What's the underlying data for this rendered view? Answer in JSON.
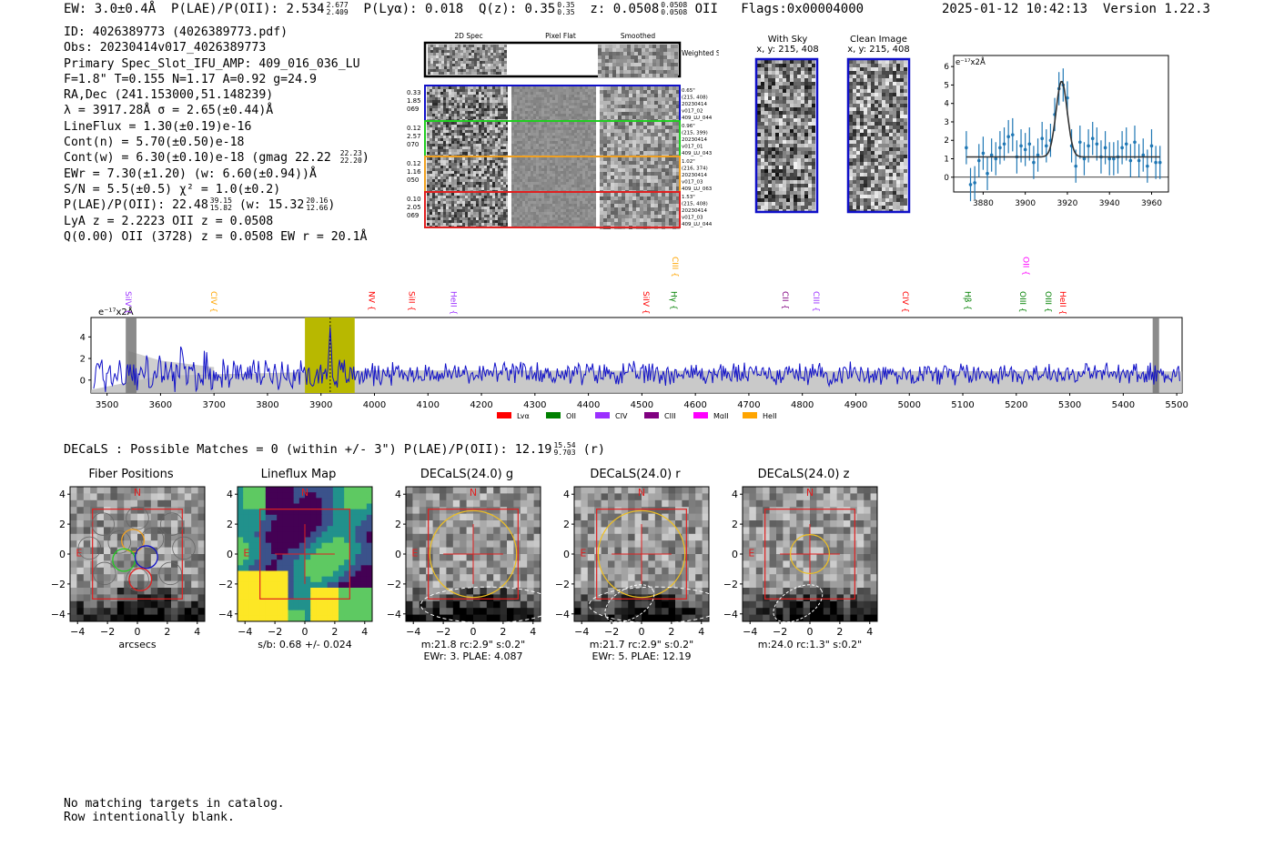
{
  "header": {
    "ew": "EW: 3.0±0.4Å",
    "plae_label": "P(LAE)/P(OII): 2.534",
    "plae_hi": "2.677",
    "plae_lo": "2.409",
    "plya": "P(Lyα): 0.018",
    "q_label": "Q(z): 0.35",
    "q_hi": "0.35",
    "q_lo": "0.35",
    "z_label": "z: 0.0508",
    "z_hi": "0.0508",
    "z_lo": "0.0508",
    "line": "OII",
    "flags": "Flags:0x00004000",
    "timestamp": "2025-01-12 10:42:13",
    "version": "Version 1.22.3"
  },
  "info": {
    "id": "ID: 4026389773 (4026389773.pdf)",
    "obs": "Obs: 20230414v017_4026389773",
    "slot": "Primary Spec_Slot_IFU_AMP: 409_016_036_LU",
    "fwhm": "F=1.8\"  T=0.155  N=1.17  A=0.92  g=24.9",
    "radec": "RA,Dec (241.153000,51.148239)",
    "lambda": "λ = 3917.28Å  σ = 2.65(±0.44)Å",
    "lineflux": "LineFlux = 1.30(±0.19)e-16",
    "contn": "Cont(n) = 5.70(±0.50)e-18",
    "contw": "Cont(w) = 6.30(±0.10)e-18 (gmag 22.22",
    "contw_hi": "22.23",
    "contw_lo": "22.20",
    "contw_end": ")",
    "ewr": "EWr = 7.30(±1.20) (w: 6.60(±0.94))Å",
    "sn": "S/N = 5.5(±0.5)  χ² = 1.0(±0.2)",
    "plae": "P(LAE)/P(OII): 22.48",
    "plae_hi": "39.15",
    "plae_lo": "15.82",
    "plae_w": "(w: 15.32",
    "plae_w_hi": "20.16",
    "plae_w_lo": "12.66",
    "plae_end": ")",
    "lya": "LyA z = 2.2223  OII z = 0.0508",
    "q": "Q(0.00) OII (3728) z = 0.0508  EW r = 20.1Å"
  },
  "cutouts": {
    "col_titles": [
      "2D Spec",
      "Pixel Flat",
      "Smoothed"
    ],
    "weighted_label": "Weighted Sum",
    "rows": [
      {
        "left": [
          "0.33",
          "1.85",
          "069"
        ],
        "right": [
          "0.65\"",
          "(215, 408)",
          "20230414",
          "v017_02",
          "409_LU_044"
        ],
        "color": "#1010c8"
      },
      {
        "left": [
          "0.12",
          "2.57",
          "070"
        ],
        "right": [
          "0.96\"",
          "(215, 399)",
          "20230414",
          "v017_01",
          "409_LU_043"
        ],
        "color": "#22cc22"
      },
      {
        "left": [
          "0.12",
          "1.16",
          "050"
        ],
        "right": [
          "1.02\"",
          "(216, 374)",
          "20230414",
          "v017_03",
          "409_LU_063"
        ],
        "color": "#f0a020"
      },
      {
        "left": [
          "0.10",
          "2.05",
          "069"
        ],
        "right": [
          "1.53\"",
          "(215, 408)",
          "20230414",
          "v017_03",
          "409_LU_044"
        ],
        "color": "#e02020"
      }
    ],
    "with_sky_title": "With Sky",
    "with_sky_xy": "x, y: 215, 408",
    "clean_title": "Clean Image",
    "clean_xy": "x, y: 215, 408"
  },
  "colors": {
    "spectrum": "#1010c8",
    "fit_points": "#1f77b4",
    "highlight": "#b8b800",
    "noise": "#bbbbbb",
    "frame_red": "#e02020",
    "lya": "#ff0000",
    "oii": "#008000",
    "civ": "#9b30ff",
    "ciii": "#800080",
    "mgii": "#ff00ff",
    "heii": "#ffa500"
  },
  "chart_data": [
    {
      "type": "scatter",
      "title": "",
      "ylabel_unit": "e⁻¹⁷x2Å",
      "xlim": [
        3866,
        3968
      ],
      "ylim": [
        -0.8,
        6.6
      ],
      "xticks": [
        3880,
        3900,
        3920,
        3940,
        3960
      ],
      "yticks": [
        0,
        1,
        2,
        3,
        4,
        5,
        6
      ],
      "x": [
        3872,
        3874,
        3876,
        3878,
        3880,
        3882,
        3884,
        3886,
        3888,
        3890,
        3892,
        3894,
        3896,
        3898,
        3900,
        3902,
        3904,
        3906,
        3908,
        3910,
        3912,
        3914,
        3916,
        3918,
        3920,
        3922,
        3924,
        3926,
        3928,
        3930,
        3932,
        3934,
        3936,
        3938,
        3940,
        3942,
        3944,
        3946,
        3948,
        3950,
        3952,
        3954,
        3956,
        3958,
        3960,
        3962,
        3964
      ],
      "y": [
        1.6,
        -0.4,
        -0.3,
        0.9,
        1.3,
        0.2,
        1.2,
        1.0,
        1.6,
        1.8,
        2.2,
        2.3,
        1.1,
        1.7,
        1.5,
        1.8,
        0.8,
        1.2,
        2.1,
        1.7,
        2.0,
        3.4,
        4.8,
        5.0,
        4.3,
        1.7,
        0.6,
        1.9,
        1.0,
        1.7,
        2.1,
        1.8,
        1.1,
        1.6,
        1.0,
        1.0,
        1.1,
        1.6,
        1.8,
        0.9,
        1.9,
        0.9,
        1.2,
        0.6,
        1.7,
        0.8,
        0.8
      ],
      "yerr": 0.9,
      "fit": {
        "continuum": 1.1,
        "peak": 5.2,
        "center": 3917.28,
        "sigma": 2.65
      }
    },
    {
      "type": "line",
      "title": "",
      "ylabel_unit": "e⁻¹⁷x2Å",
      "xlim": [
        3470,
        5510
      ],
      "ylim": [
        -1.2,
        5.8
      ],
      "xticks": [
        3500,
        3600,
        3700,
        3800,
        3900,
        4000,
        4100,
        4200,
        4300,
        4400,
        4500,
        4600,
        4700,
        4800,
        4900,
        5000,
        5100,
        5200,
        5300,
        5400,
        5500
      ],
      "yticks": [
        0,
        2,
        4
      ],
      "highlight_range": [
        3870,
        3963
      ],
      "peak_wavelength": 3917.28,
      "masked_ranges": [
        [
          3535,
          3555
        ],
        [
          5455,
          5467
        ]
      ],
      "line_marks": [
        {
          "label": "SiIV",
          "wavelength": 3540,
          "color": "#9b30ff",
          "high": false
        },
        {
          "label": "CIV",
          "wavelength": 3700,
          "color": "#ffa500",
          "high": false
        },
        {
          "label": "NV",
          "wavelength": 3995,
          "color": "#ff0000",
          "high": false
        },
        {
          "label": "SiII",
          "wavelength": 4070,
          "color": "#ff0000",
          "high": false
        },
        {
          "label": "HeII",
          "wavelength": 4148,
          "color": "#9b30ff",
          "high": false
        },
        {
          "label": "SiIV",
          "wavelength": 4508,
          "color": "#ff0000",
          "high": false
        },
        {
          "label": "Hγ",
          "wavelength": 4560,
          "color": "#008000",
          "high": false
        },
        {
          "label": "CIII",
          "wavelength": 4562,
          "color": "#ffa500",
          "high": true
        },
        {
          "label": "CII",
          "wavelength": 4768,
          "color": "#800080",
          "high": false
        },
        {
          "label": "CIII",
          "wavelength": 4826,
          "color": "#9b30ff",
          "high": false
        },
        {
          "label": "CIV",
          "wavelength": 4993,
          "color": "#ff0000",
          "high": false
        },
        {
          "label": "Hβ",
          "wavelength": 5109,
          "color": "#008000",
          "high": false
        },
        {
          "label": "OIII",
          "wavelength": 5212,
          "color": "#008000",
          "high": false
        },
        {
          "label": "OII",
          "wavelength": 5218,
          "color": "#ff00ff",
          "high": true
        },
        {
          "label": "OIII",
          "wavelength": 5260,
          "color": "#008000",
          "high": false
        },
        {
          "label": "HeII",
          "wavelength": 5287,
          "color": "#ff0000",
          "high": false
        }
      ],
      "legend": [
        {
          "label": "Lyα",
          "color": "#ff0000"
        },
        {
          "label": "OII",
          "color": "#008000"
        },
        {
          "label": "CIV",
          "color": "#9b30ff"
        },
        {
          "label": "CIII",
          "color": "#800080"
        },
        {
          "label": "MgII",
          "color": "#ff00ff"
        },
        {
          "label": "HeII",
          "color": "#ffa500"
        }
      ]
    }
  ],
  "decals": {
    "header": "DECaLS : Possible Matches = 0 (within +/- 3\")  P(LAE)/P(OII): 12.19",
    "hi": "15.54",
    "lo": "9.703",
    "band": "(r)"
  },
  "thumbs": [
    {
      "title": "Fiber Positions",
      "caption1": "arcsecs",
      "caption2": "",
      "kind": "fibers"
    },
    {
      "title": "Lineflux Map",
      "caption1": "s/b: 0.68 +/- 0.024",
      "caption2": "",
      "kind": "lineflux"
    },
    {
      "title": "DECaLS(24.0) g",
      "caption1": "m:21.8 rc:2.9\"  s:0.2\"",
      "caption2": "EWr: 3, PLAE: 4.087",
      "kind": "g"
    },
    {
      "title": "DECaLS(24.0) r",
      "caption1": "m:21.7 rc:2.9\"  s:0.2\"",
      "caption2": "EWr: 5, PLAE: 12.19",
      "kind": "r"
    },
    {
      "title": "DECaLS(24.0) z",
      "caption1": "m:24.0 rc:1.3\"  s:0.2\"",
      "caption2": "",
      "kind": "z"
    }
  ],
  "thumb_axis": {
    "ticks": [
      -4,
      -2,
      0,
      2,
      4
    ],
    "n_label": "N",
    "e_label": "E"
  },
  "footer": {
    "line1": "No matching targets in catalog.",
    "line2": "Row intentionally blank."
  }
}
